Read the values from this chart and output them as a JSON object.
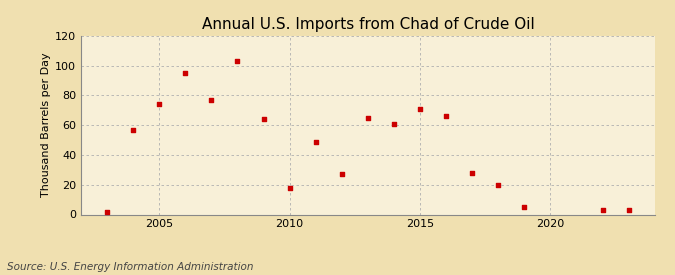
{
  "title": "Annual U.S. Imports from Chad of Crude Oil",
  "ylabel": "Thousand Barrels per Day",
  "source": "Source: U.S. Energy Information Administration",
  "background_color": "#f0e0b0",
  "plot_background_color": "#f8f0d8",
  "marker_color": "#cc0000",
  "years": [
    2003,
    2004,
    2005,
    2006,
    2007,
    2008,
    2009,
    2010,
    2011,
    2012,
    2013,
    2014,
    2015,
    2016,
    2017,
    2018,
    2019,
    2022,
    2023
  ],
  "values": [
    2,
    57,
    74,
    95,
    77,
    103,
    64,
    18,
    49,
    27,
    65,
    61,
    71,
    66,
    28,
    20,
    5,
    3,
    3
  ],
  "xlim": [
    2002,
    2024
  ],
  "ylim": [
    0,
    120
  ],
  "yticks": [
    0,
    20,
    40,
    60,
    80,
    100,
    120
  ],
  "xticks": [
    2005,
    2010,
    2015,
    2020
  ],
  "grid_color": "#b0b0b0",
  "title_fontsize": 11,
  "label_fontsize": 8,
  "tick_fontsize": 8,
  "source_fontsize": 7.5
}
